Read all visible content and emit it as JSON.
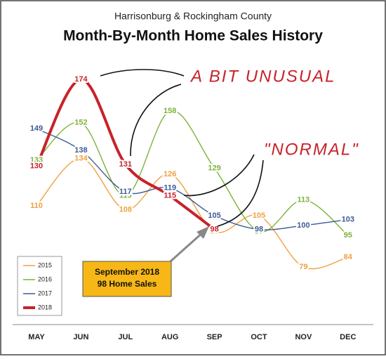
{
  "chart_data": {
    "type": "line",
    "subtitle": "Harrisonburg & Rockingham County",
    "title": "Month-By-Month Home Sales History",
    "categories": [
      "MAY",
      "JUN",
      "JUL",
      "AUG",
      "SEP",
      "OCT",
      "NOV",
      "DEC"
    ],
    "series": [
      {
        "name": "2015",
        "color": "#f0a040",
        "values": [
          110,
          134,
          108,
          126,
          97,
          105,
          79,
          84
        ]
      },
      {
        "name": "2016",
        "color": "#7fb23c",
        "values": [
          133,
          152,
          115,
          158,
          129,
          97,
          113,
          95
        ]
      },
      {
        "name": "2017",
        "color": "#3d5a94",
        "values": [
          149,
          138,
          117,
          119,
          105,
          98,
          100,
          103
        ]
      },
      {
        "name": "2018",
        "color": "#c8222a",
        "values": [
          130,
          174,
          131,
          115,
          98,
          null,
          null,
          null
        ]
      }
    ],
    "annotations": [
      "A BIT UNUSUAL",
      "\"NORMAL\""
    ],
    "callout": [
      "September 2018",
      "98 Home Sales"
    ],
    "legend": "lower left"
  }
}
